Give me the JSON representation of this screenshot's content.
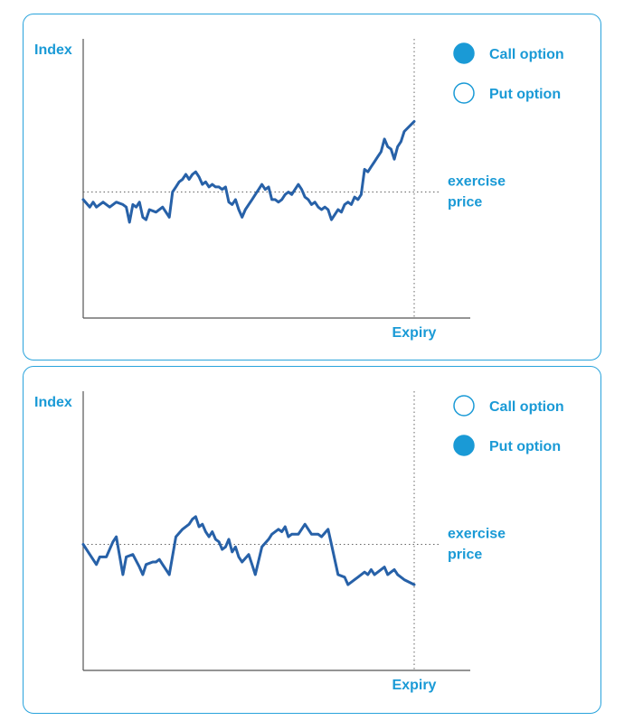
{
  "chart_data": [
    {
      "type": "line",
      "ylabel": "Index",
      "xlabel": "Expiry",
      "threshold_label": [
        "exercise",
        "price"
      ],
      "legend": [
        {
          "label": "Call option",
          "selected": true
        },
        {
          "label": "Put option",
          "selected": false
        }
      ],
      "exercise_price": 50,
      "ylim": [
        0,
        100
      ],
      "xlim": [
        0,
        100
      ],
      "series": [
        {
          "values": [
            [
              0,
              47
            ],
            [
              2,
              44
            ],
            [
              3,
              46
            ],
            [
              4,
              44
            ],
            [
              6,
              46
            ],
            [
              7,
              45
            ],
            [
              8,
              44
            ],
            [
              10,
              46
            ],
            [
              12,
              45
            ],
            [
              13,
              44
            ],
            [
              14,
              38
            ],
            [
              15,
              45
            ],
            [
              16,
              44
            ],
            [
              17,
              46
            ],
            [
              18,
              40
            ],
            [
              19,
              39
            ],
            [
              20,
              43
            ],
            [
              22,
              42
            ],
            [
              24,
              44
            ],
            [
              25,
              42
            ],
            [
              26,
              40
            ],
            [
              27,
              50
            ],
            [
              28,
              52
            ],
            [
              29,
              54
            ],
            [
              30,
              55
            ],
            [
              31,
              57
            ],
            [
              32,
              55
            ],
            [
              33,
              57
            ],
            [
              34,
              58
            ],
            [
              35,
              56
            ],
            [
              36,
              53
            ],
            [
              37,
              54
            ],
            [
              38,
              52
            ],
            [
              39,
              53
            ],
            [
              40,
              52
            ],
            [
              41,
              52
            ],
            [
              42,
              51
            ],
            [
              43,
              52
            ],
            [
              44,
              46
            ],
            [
              45,
              45
            ],
            [
              46,
              47
            ],
            [
              47,
              43
            ],
            [
              48,
              40
            ],
            [
              49,
              43
            ],
            [
              50,
              45
            ],
            [
              51,
              47
            ],
            [
              52,
              49
            ],
            [
              53,
              51
            ],
            [
              54,
              53
            ],
            [
              55,
              51
            ],
            [
              56,
              52
            ],
            [
              57,
              47
            ],
            [
              58,
              47
            ],
            [
              59,
              46
            ],
            [
              60,
              47
            ],
            [
              61,
              49
            ],
            [
              62,
              50
            ],
            [
              63,
              49
            ],
            [
              64,
              51
            ],
            [
              65,
              53
            ],
            [
              66,
              51
            ],
            [
              67,
              48
            ],
            [
              68,
              47
            ],
            [
              69,
              45
            ],
            [
              70,
              46
            ],
            [
              71,
              44
            ],
            [
              72,
              43
            ],
            [
              73,
              44
            ],
            [
              74,
              43
            ],
            [
              75,
              39
            ],
            [
              76,
              41
            ],
            [
              77,
              43
            ],
            [
              78,
              42
            ],
            [
              79,
              45
            ],
            [
              80,
              46
            ],
            [
              81,
              45
            ],
            [
              82,
              48
            ],
            [
              83,
              47
            ],
            [
              84,
              49
            ],
            [
              85,
              59
            ],
            [
              86,
              58
            ],
            [
              87,
              60
            ],
            [
              88,
              62
            ],
            [
              89,
              64
            ],
            [
              90,
              66
            ],
            [
              91,
              71
            ],
            [
              92,
              68
            ],
            [
              93,
              67
            ],
            [
              94,
              63
            ],
            [
              95,
              68
            ],
            [
              96,
              70
            ],
            [
              97,
              74
            ],
            [
              100,
              78
            ]
          ]
        }
      ]
    },
    {
      "type": "line",
      "ylabel": "Index",
      "xlabel": "Expiry",
      "threshold_label": [
        "exercise",
        "price"
      ],
      "legend": [
        {
          "label": "Call option",
          "selected": false
        },
        {
          "label": "Put option",
          "selected": true
        }
      ],
      "exercise_price": 50,
      "ylim": [
        0,
        100
      ],
      "xlim": [
        0,
        100
      ],
      "series": [
        {
          "values": [
            [
              0,
              50
            ],
            [
              2,
              46
            ],
            [
              4,
              42
            ],
            [
              5,
              45
            ],
            [
              7,
              45
            ],
            [
              9,
              51
            ],
            [
              10,
              53
            ],
            [
              12,
              38
            ],
            [
              13,
              45
            ],
            [
              15,
              46
            ],
            [
              17,
              41
            ],
            [
              18,
              38
            ],
            [
              19,
              42
            ],
            [
              21,
              43
            ],
            [
              22,
              43
            ],
            [
              23,
              44
            ],
            [
              24,
              42
            ],
            [
              26,
              38
            ],
            [
              28,
              53
            ],
            [
              30,
              56
            ],
            [
              32,
              58
            ],
            [
              33,
              60
            ],
            [
              34,
              61
            ],
            [
              35,
              57
            ],
            [
              36,
              58
            ],
            [
              37,
              55
            ],
            [
              38,
              53
            ],
            [
              39,
              55
            ],
            [
              40,
              52
            ],
            [
              41,
              51
            ],
            [
              42,
              48
            ],
            [
              43,
              49
            ],
            [
              44,
              52
            ],
            [
              45,
              47
            ],
            [
              46,
              49
            ],
            [
              47,
              45
            ],
            [
              48,
              43
            ],
            [
              50,
              46
            ],
            [
              51,
              42
            ],
            [
              52,
              38
            ],
            [
              54,
              49
            ],
            [
              56,
              52
            ],
            [
              57,
              54
            ],
            [
              59,
              56
            ],
            [
              60,
              55
            ],
            [
              61,
              57
            ],
            [
              62,
              53
            ],
            [
              63,
              54
            ],
            [
              65,
              54
            ],
            [
              67,
              58
            ],
            [
              69,
              54
            ],
            [
              71,
              54
            ],
            [
              72,
              53
            ],
            [
              74,
              56
            ],
            [
              75,
              50
            ],
            [
              77,
              38
            ],
            [
              79,
              37
            ],
            [
              80,
              34
            ],
            [
              82,
              36
            ],
            [
              83,
              37
            ],
            [
              85,
              39
            ],
            [
              86,
              38
            ],
            [
              87,
              40
            ],
            [
              88,
              38
            ],
            [
              90,
              40
            ],
            [
              91,
              41
            ],
            [
              92,
              38
            ],
            [
              93,
              39
            ],
            [
              94,
              40
            ],
            [
              95,
              38
            ],
            [
              96,
              37
            ],
            [
              97,
              36
            ],
            [
              100,
              34
            ]
          ]
        }
      ]
    }
  ],
  "colors": {
    "accent": "#1a9ad6",
    "line": "#2761a8",
    "axis": "#555555",
    "dotted": "#666666"
  }
}
